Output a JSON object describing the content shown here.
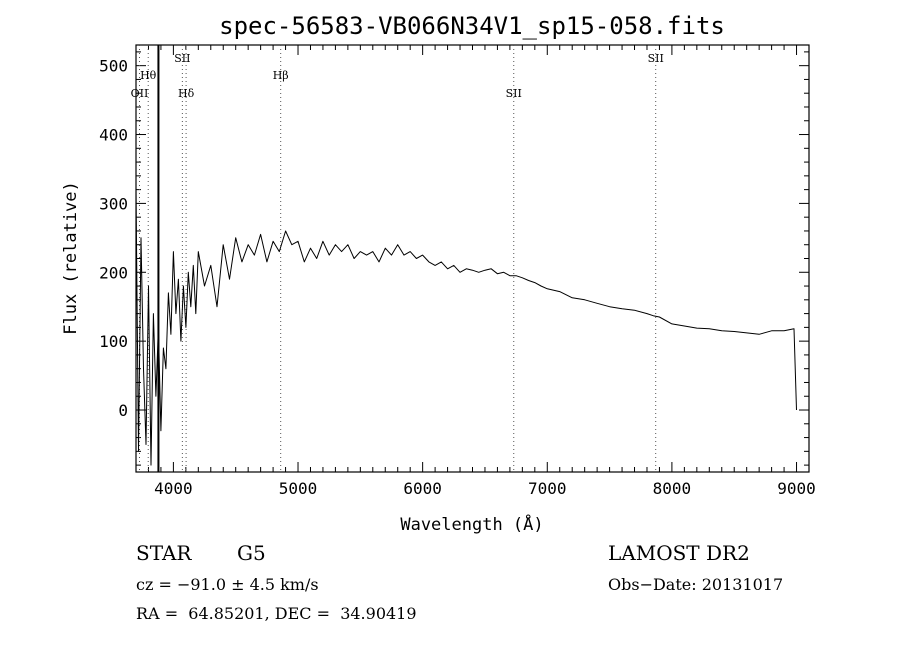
{
  "chart_data": {
    "type": "line",
    "title": "spec-56583-VB066N34V1_sp15-058.fits",
    "xlabel": "Wavelength (Å)",
    "ylabel": "Flux (relative)",
    "xlim": [
      3700,
      9100
    ],
    "ylim": [
      -90,
      530
    ],
    "x_ticks": [
      4000,
      5000,
      6000,
      7000,
      8000,
      9000
    ],
    "y_ticks": [
      0,
      100,
      200,
      300,
      400,
      500
    ],
    "grid": false,
    "series": [
      {
        "x": [
          3700,
          3720,
          3740,
          3760,
          3780,
          3800,
          3820,
          3840,
          3860,
          3880,
          3900,
          3920,
          3940,
          3960,
          3980,
          4000,
          4020,
          4040,
          4060,
          4080,
          4100,
          4120,
          4140,
          4160,
          4180,
          4200,
          4250,
          4300,
          4350,
          4400,
          4450,
          4500,
          4550,
          4600,
          4650,
          4700,
          4750,
          4800,
          4850,
          4900,
          4950,
          5000,
          5050,
          5100,
          5150,
          5200,
          5250,
          5300,
          5350,
          5400,
          5450,
          5500,
          5550,
          5600,
          5650,
          5700,
          5750,
          5800,
          5850,
          5900,
          5950,
          6000,
          6050,
          6100,
          6150,
          6200,
          6250,
          6300,
          6350,
          6400,
          6450,
          6500,
          6550,
          6600,
          6650,
          6700,
          6750,
          6800,
          6850,
          6900,
          6950,
          7000,
          7100,
          7200,
          7300,
          7400,
          7500,
          7600,
          7700,
          7800,
          7850,
          7900,
          8000,
          8100,
          8200,
          8300,
          8400,
          8500,
          8600,
          8700,
          8800,
          8900,
          8980,
          9000
        ],
        "y": [
          320,
          -60,
          250,
          60,
          -50,
          180,
          -80,
          140,
          20,
          120,
          -30,
          90,
          60,
          170,
          110,
          230,
          140,
          190,
          100,
          180,
          120,
          200,
          150,
          210,
          140,
          230,
          180,
          210,
          150,
          240,
          190,
          250,
          215,
          240,
          225,
          255,
          215,
          245,
          230,
          260,
          240,
          245,
          215,
          235,
          220,
          245,
          225,
          240,
          230,
          240,
          220,
          230,
          225,
          230,
          215,
          235,
          225,
          240,
          225,
          230,
          220,
          225,
          215,
          210,
          215,
          205,
          210,
          200,
          205,
          203,
          200,
          203,
          205,
          198,
          200,
          195,
          195,
          192,
          188,
          185,
          180,
          176,
          172,
          163,
          160,
          155,
          150,
          147,
          145,
          140,
          137,
          135,
          125,
          122,
          119,
          118,
          115,
          114,
          112,
          110,
          115,
          115,
          118,
          0
        ]
      }
    ],
    "vertical_line": {
      "x": 3880,
      "y_top": 530,
      "y_bottom": -90
    },
    "line_markers": [
      {
        "label": "OII",
        "x": 3728,
        "level": "low"
      },
      {
        "label": "Hθ",
        "x": 3798,
        "level": "mid"
      },
      {
        "label": "SII",
        "x": 4072,
        "level": "high"
      },
      {
        "label": "Hδ",
        "x": 4102,
        "level": "low"
      },
      {
        "label": "Hβ",
        "x": 4861,
        "level": "mid"
      },
      {
        "label": "SII",
        "x": 6731,
        "level": "low"
      },
      {
        "label": "SII",
        "x": 7870,
        "level": "high"
      }
    ]
  },
  "info": {
    "object_type": "STAR",
    "subclass": "G5",
    "survey": "LAMOST DR2",
    "redshift": "cz = −91.0 ± 4.5 km/s",
    "obs_date": "Obs−Date: 20131017",
    "coords": "RA =  64.85201, DEC =  34.90419"
  },
  "colors": {
    "line": "#000000",
    "marker": "#555555",
    "background": "#ffffff"
  }
}
